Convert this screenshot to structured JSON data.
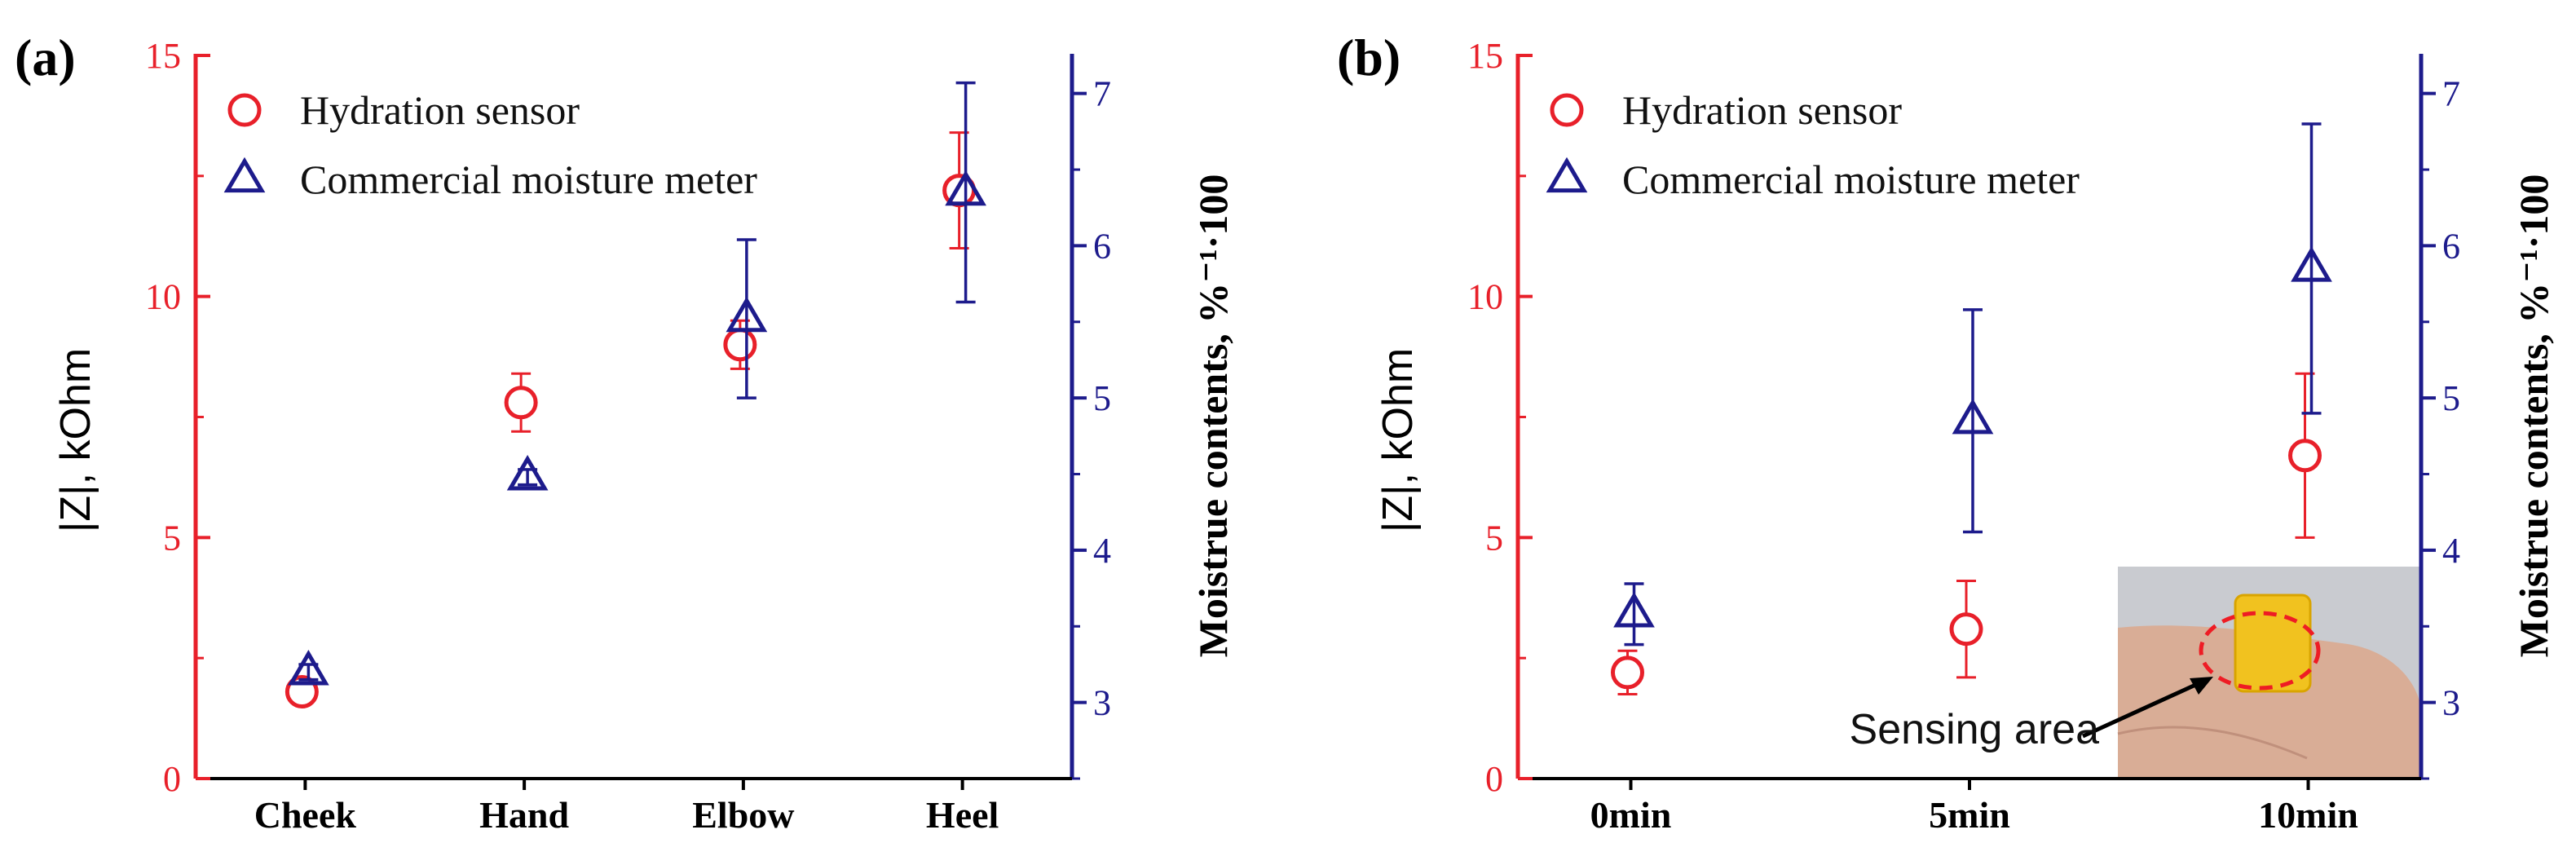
{
  "chart_data": [
    {
      "type": "scatter",
      "panel_label": "(a)",
      "categories": [
        "Cheek",
        "Hand",
        "Elbow",
        "Heel"
      ],
      "ylabel": "|Z|, kOhm",
      "ylim": [
        0,
        15
      ],
      "yticks": [
        "0",
        "5",
        "10",
        "15"
      ],
      "y2label": "Moistrue contents, %⁻¹·100",
      "y2lim": [
        2.5,
        7.25
      ],
      "y2ticks": [
        "3",
        "4",
        "5",
        "6",
        "7"
      ],
      "legend_position": "top-left",
      "colors": {
        "left_axis": "#e8202a",
        "right_axis": "#1d1b8c"
      },
      "series": [
        {
          "name": "Hydration sensor",
          "axis": "left",
          "marker": "circle",
          "color": "#e8202a",
          "values": [
            1.8,
            7.8,
            9.0,
            12.2
          ],
          "errors": [
            0.2,
            0.6,
            0.5,
            1.2
          ]
        },
        {
          "name": "Commercial moisture meter",
          "axis": "right",
          "marker": "triangle",
          "color": "#1d1b8c",
          "values": [
            3.2,
            4.48,
            5.52,
            6.35
          ],
          "errors": [
            0.05,
            0.05,
            0.52,
            0.72
          ]
        }
      ]
    },
    {
      "type": "scatter",
      "panel_label": "(b)",
      "categories": [
        "0min",
        "5min",
        "10min"
      ],
      "ylabel": "|Z|, kOhm",
      "ylim": [
        0,
        15
      ],
      "yticks": [
        "0",
        "5",
        "10",
        "15"
      ],
      "y2label": "Moistrue contents, %⁻¹·100",
      "y2lim": [
        2.5,
        7.25
      ],
      "y2ticks": [
        "3",
        "4",
        "5",
        "6",
        "7"
      ],
      "legend_position": "top-left",
      "annotation": "Sensing area",
      "colors": {
        "left_axis": "#e8202a",
        "right_axis": "#1d1b8c"
      },
      "series": [
        {
          "name": "Hydration sensor",
          "axis": "left",
          "marker": "circle",
          "color": "#e8202a",
          "values": [
            2.2,
            3.1,
            6.7
          ],
          "errors": [
            0.45,
            1.0,
            1.7
          ]
        },
        {
          "name": "Commercial moisture meter",
          "axis": "right",
          "marker": "triangle",
          "color": "#1d1b8c",
          "values": [
            3.58,
            4.85,
            5.85
          ],
          "errors": [
            0.2,
            0.73,
            0.95
          ]
        }
      ]
    }
  ]
}
